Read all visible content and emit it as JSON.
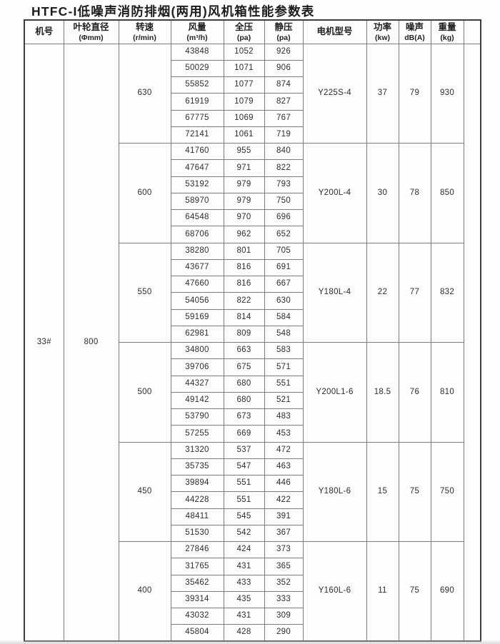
{
  "title": "HTFC-I低噪声消防排烟(两用)风机箱性能参数表",
  "table": {
    "headers": [
      {
        "line1": "机号",
        "line2": ""
      },
      {
        "line1": "叶轮直径",
        "line2": "(Φmm)"
      },
      {
        "line1": "转速",
        "line2": "(r/min)"
      },
      {
        "line1": "风量",
        "line2": "(m³/h)"
      },
      {
        "line1": "全压",
        "line2": "(pa)"
      },
      {
        "line1": "静压",
        "line2": "(pa)"
      },
      {
        "line1": "电机型号",
        "line2": ""
      },
      {
        "line1": "功率",
        "line2": "(kw)"
      },
      {
        "line1": "噪声",
        "line2": "dB(A)"
      },
      {
        "line1": "重量",
        "line2": "(kg)"
      }
    ],
    "machine_no": "33#",
    "impeller_diameter": "800",
    "blocks": [
      {
        "speed": "630",
        "rows": [
          [
            43848,
            1052,
            926
          ],
          [
            50029,
            1071,
            906
          ],
          [
            55852,
            1077,
            874
          ],
          [
            61919,
            1079,
            827
          ],
          [
            67775,
            1069,
            767
          ],
          [
            72141,
            1061,
            719
          ]
        ],
        "motor": "Y225S-4",
        "power": "37",
        "noise": "79",
        "weight": "930"
      },
      {
        "speed": "600",
        "rows": [
          [
            41760,
            955,
            840
          ],
          [
            47647,
            971,
            822
          ],
          [
            53192,
            979,
            793
          ],
          [
            58970,
            979,
            750
          ],
          [
            64548,
            970,
            696
          ],
          [
            68706,
            962,
            652
          ]
        ],
        "motor": "Y200L-4",
        "power": "30",
        "noise": "78",
        "weight": "850"
      },
      {
        "speed": "550",
        "rows": [
          [
            38280,
            801,
            705
          ],
          [
            43677,
            816,
            691
          ],
          [
            47660,
            816,
            667
          ],
          [
            54056,
            822,
            630
          ],
          [
            59169,
            814,
            584
          ],
          [
            62981,
            809,
            548
          ]
        ],
        "motor": "Y180L-4",
        "power": "22",
        "noise": "77",
        "weight": "832"
      },
      {
        "speed": "500",
        "rows": [
          [
            34800,
            663,
            583
          ],
          [
            39706,
            675,
            571
          ],
          [
            44327,
            680,
            551
          ],
          [
            49142,
            680,
            521
          ],
          [
            53790,
            673,
            483
          ],
          [
            57255,
            669,
            453
          ]
        ],
        "motor": "Y200L1-6",
        "power": "18.5",
        "noise": "76",
        "weight": "810"
      },
      {
        "speed": "450",
        "rows": [
          [
            31320,
            537,
            472
          ],
          [
            35735,
            547,
            463
          ],
          [
            39894,
            551,
            446
          ],
          [
            44228,
            551,
            422
          ],
          [
            48411,
            545,
            391
          ],
          [
            51530,
            542,
            367
          ]
        ],
        "motor": "Y180L-6",
        "power": "15",
        "noise": "75",
        "weight": "750"
      },
      {
        "speed": "400",
        "rows": [
          [
            27846,
            424,
            373
          ],
          [
            31765,
            431,
            365
          ],
          [
            35462,
            433,
            352
          ],
          [
            39314,
            435,
            333
          ],
          [
            43032,
            431,
            309
          ],
          [
            45804,
            428,
            290
          ]
        ],
        "motor": "Y160L-6",
        "power": "11",
        "noise": "75",
        "weight": "690"
      }
    ]
  }
}
